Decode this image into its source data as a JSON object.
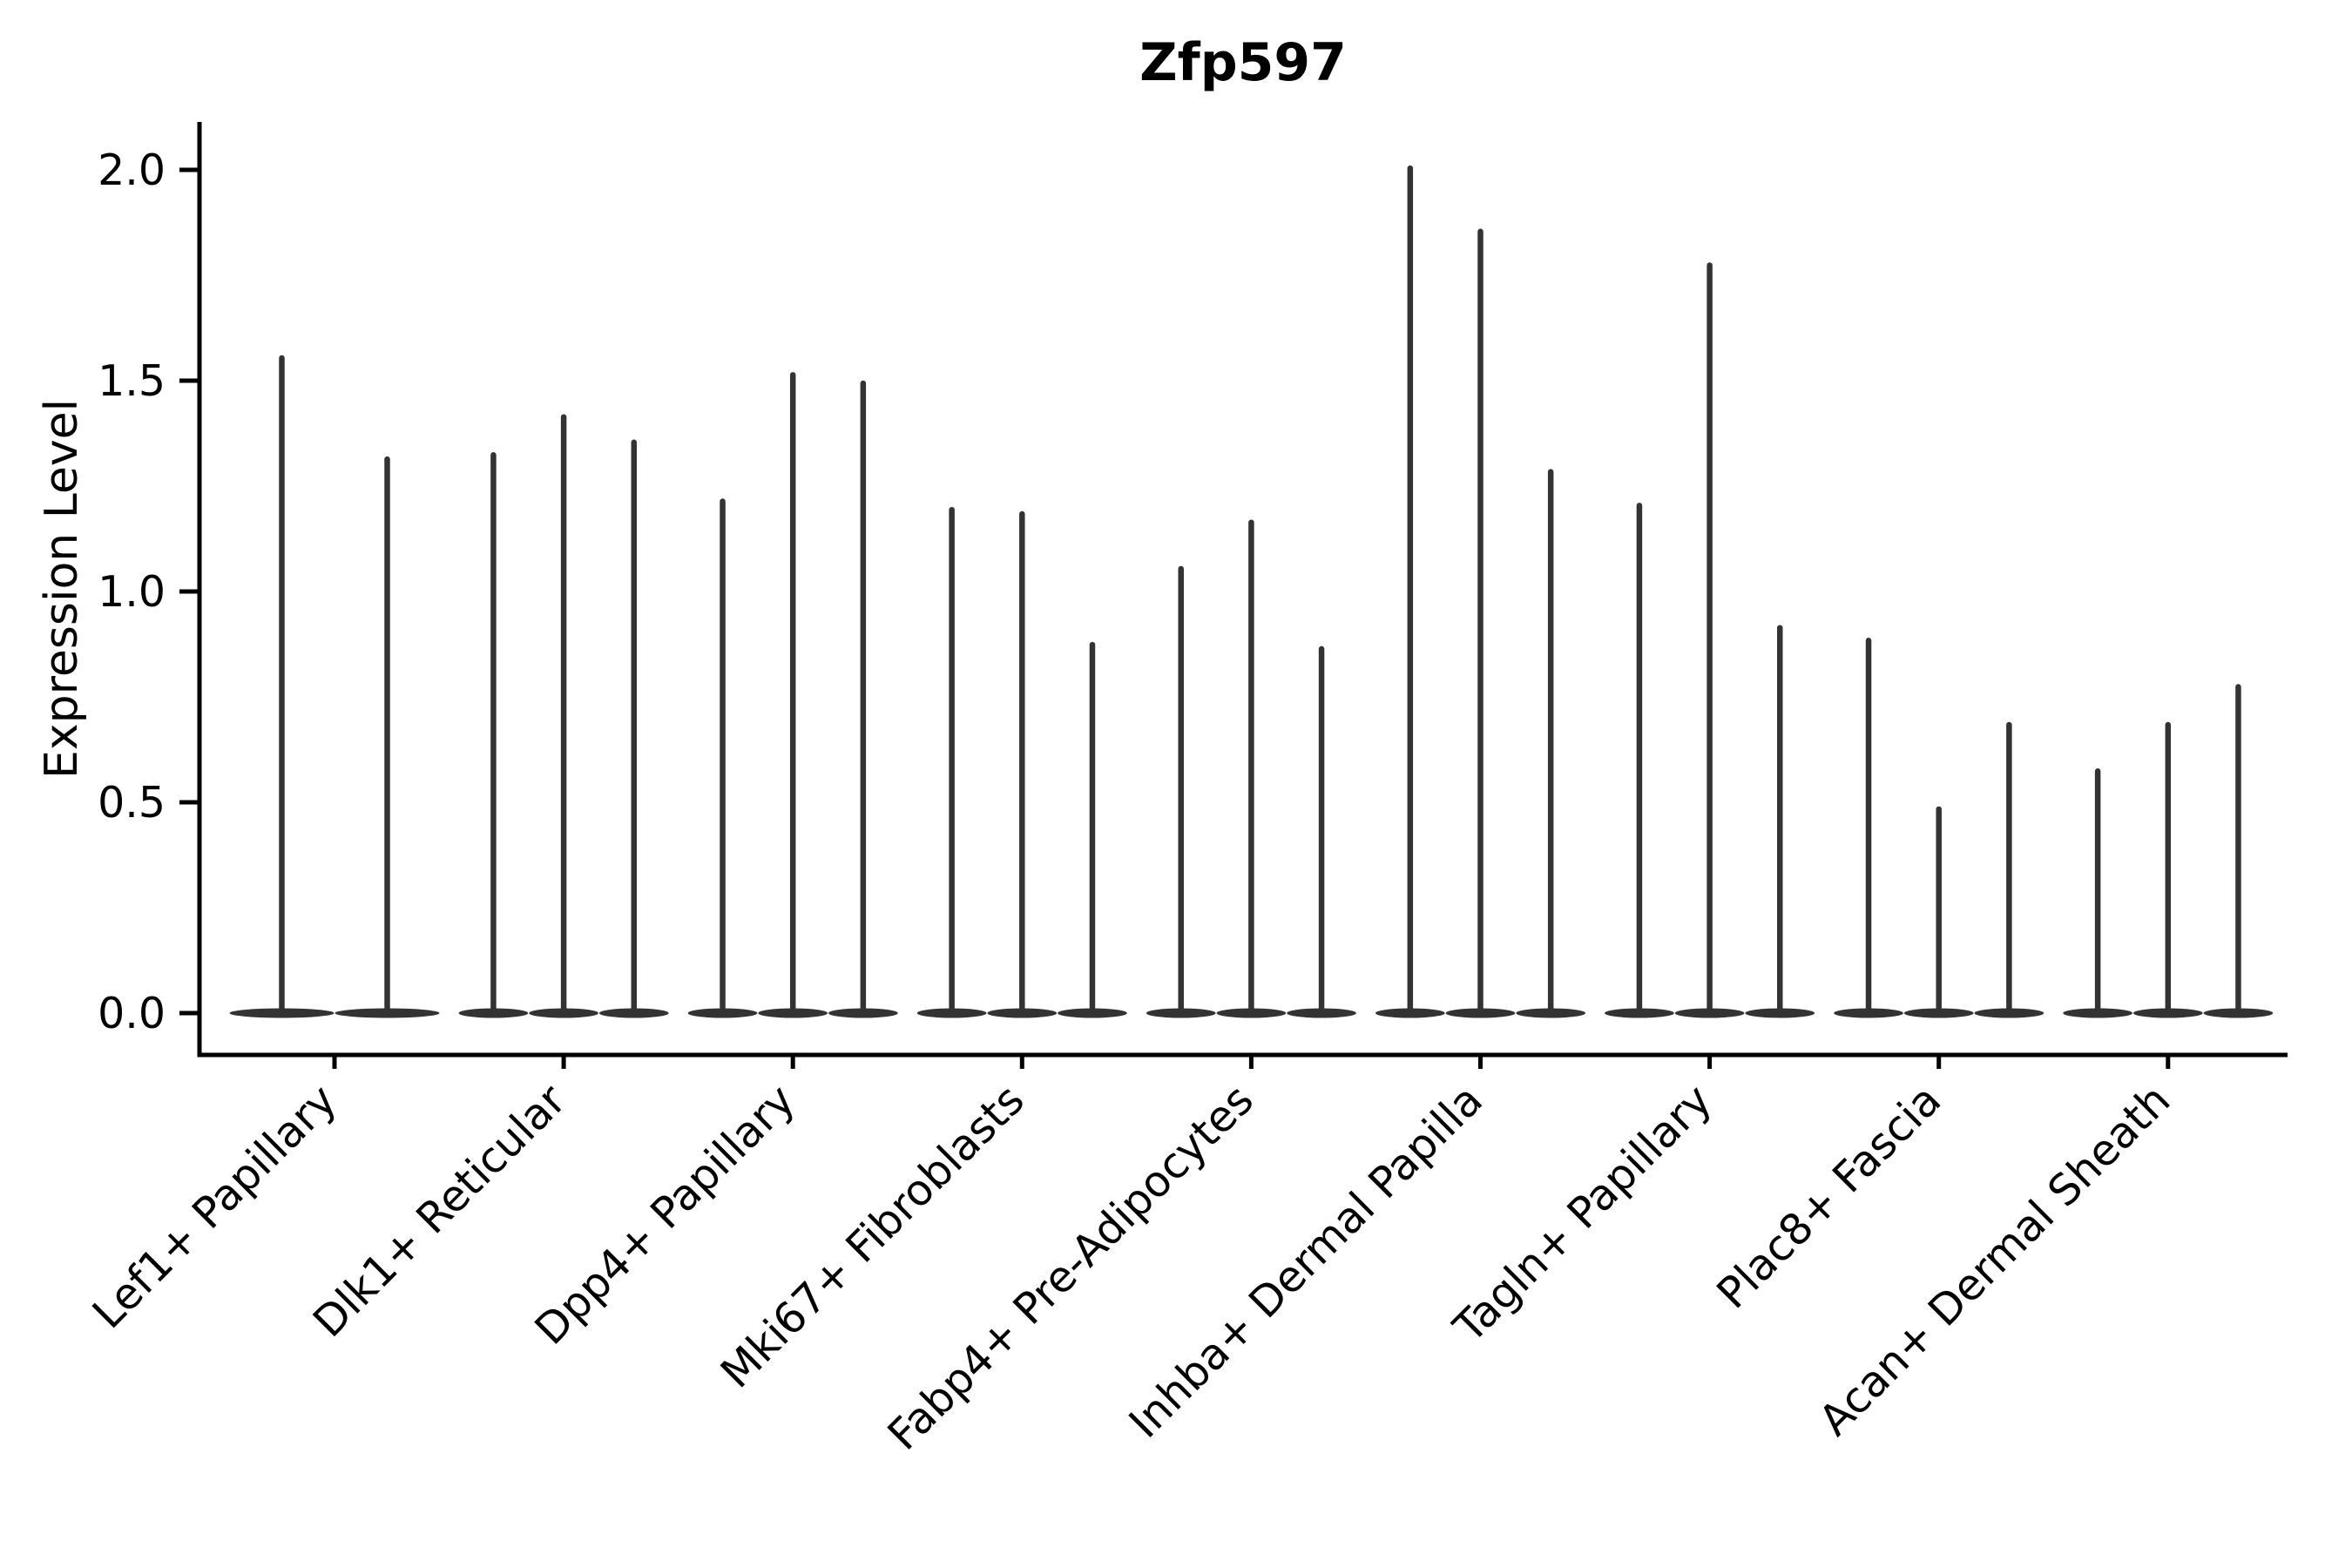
{
  "chart_data": {
    "type": "violin",
    "title": "Zfp597",
    "ylabel": "Expression Level",
    "xlabel": "",
    "ylim": [
      0,
      2.11
    ],
    "yticks": [
      "0.0",
      "0.5",
      "1.0",
      "1.5",
      "2.0"
    ],
    "ytick_values": [
      0,
      0.5,
      1.0,
      1.5,
      2.0
    ],
    "categories": [
      "Lef1+ Papillary",
      "Dlk1+ Reticular",
      "Dpp4+ Papillary",
      "Mki67+ Fibroblasts",
      "Fabp4+ Pre-Adipocytes",
      "Inhba+ Dermal Papilla",
      "Tagln+ Papillary",
      "Plac8+ Fascia",
      "Acan+ Dermal Sheath"
    ],
    "violin_maxima": [
      [
        1.56,
        1.32
      ],
      [
        1.33,
        1.42,
        1.36
      ],
      [
        1.22,
        1.52,
        1.5
      ],
      [
        1.2,
        1.19,
        0.88
      ],
      [
        1.06,
        1.17,
        0.87
      ],
      [
        2.01,
        1.86,
        1.29
      ],
      [
        1.21,
        1.78,
        0.92
      ],
      [
        0.89,
        0.49,
        0.69
      ],
      [
        0.58,
        0.69,
        0.78
      ]
    ],
    "violin_bulk_value": 0,
    "x_tick_rotation": 45,
    "grid": false,
    "legend": false,
    "spines": [
      "left",
      "bottom"
    ],
    "violin_color": "#333333",
    "axis_color": "#000000",
    "background_color": "#ffffff",
    "title_bold": true
  }
}
